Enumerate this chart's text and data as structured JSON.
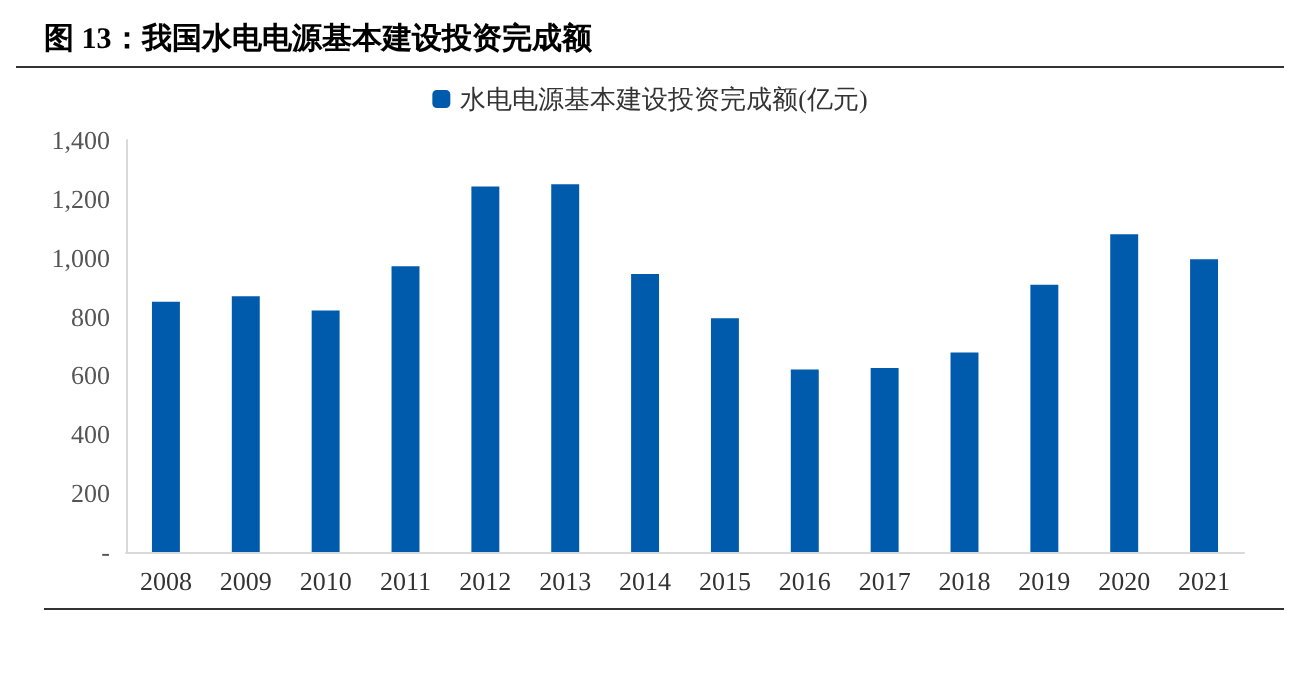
{
  "chart_data": {
    "type": "bar",
    "title": "图 13：我国水电电源基本建设投资完成额",
    "categories": [
      "2008",
      "2009",
      "2010",
      "2011",
      "2012",
      "2013",
      "2014",
      "2015",
      "2016",
      "2017",
      "2018",
      "2019",
      "2020",
      "2021"
    ],
    "series": [
      {
        "name": "水电电源基本建设投资完成额(亿元)",
        "color": "#005bac",
        "values": [
          850,
          869,
          821,
          971,
          1242,
          1250,
          945,
          794,
          620,
          625,
          678,
          908,
          1080,
          995
        ]
      }
    ],
    "ylim": [
      0,
      1400
    ],
    "yticks": [
      {
        "value": 0,
        "label": "-"
      },
      {
        "value": 200,
        "label": "200"
      },
      {
        "value": 400,
        "label": "400"
      },
      {
        "value": 600,
        "label": "600"
      },
      {
        "value": 800,
        "label": "800"
      },
      {
        "value": 1000,
        "label": "1,000"
      },
      {
        "value": 1200,
        "label": "1,200"
      },
      {
        "value": 1400,
        "label": "1,400"
      }
    ],
    "grid": false,
    "legend": "top"
  }
}
